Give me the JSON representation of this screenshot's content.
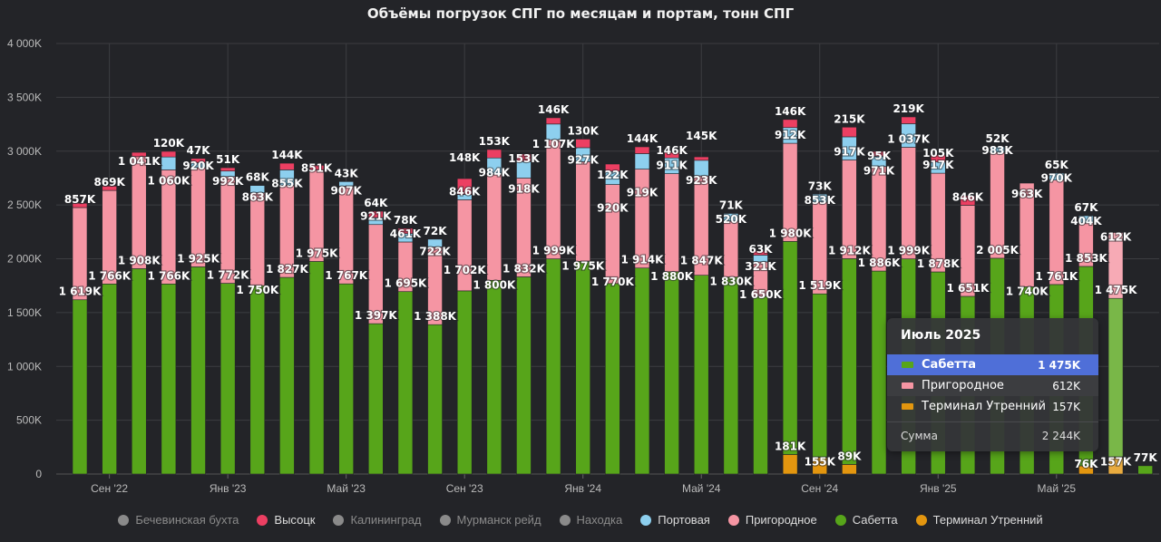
{
  "chart_data": {
    "type": "bar",
    "stacked": true,
    "title": "Объёмы погрузок СПГ по месяцам и портам, тонн СПГ",
    "unit": "K",
    "ylim": [
      0,
      4000
    ],
    "y_ticks": [
      "0",
      "500K",
      "1 000K",
      "1 500K",
      "2 000K",
      "2 500K",
      "3 000K",
      "3 500K",
      "4 000K"
    ],
    "x_ticks": [
      {
        "month": "2022-09",
        "label": "Сен '22"
      },
      {
        "month": "2023-01",
        "label": "Янв '23"
      },
      {
        "month": "2023-05",
        "label": "Май '23"
      },
      {
        "month": "2023-09",
        "label": "Сен '23"
      },
      {
        "month": "2024-01",
        "label": "Янв '24"
      },
      {
        "month": "2024-05",
        "label": "Май '24"
      },
      {
        "month": "2024-09",
        "label": "Сен '24"
      },
      {
        "month": "2025-01",
        "label": "Янв '25"
      },
      {
        "month": "2025-05",
        "label": "Май '25"
      }
    ],
    "grid": true,
    "legend_position": "bottom",
    "categories": [
      "2022-08",
      "2022-09",
      "2022-10",
      "2022-11",
      "2022-12",
      "2023-01",
      "2023-02",
      "2023-03",
      "2023-04",
      "2023-05",
      "2023-06",
      "2023-07",
      "2023-08",
      "2023-09",
      "2023-10",
      "2023-11",
      "2023-12",
      "2024-01",
      "2024-02",
      "2024-03",
      "2024-04",
      "2024-05",
      "2024-06",
      "2024-07",
      "2024-08",
      "2024-09",
      "2024-10",
      "2024-11",
      "2024-12",
      "2025-01",
      "2025-02",
      "2025-03",
      "2025-04",
      "2025-05",
      "2025-06",
      "2025-07",
      "2025-08"
    ],
    "series": [
      {
        "name": "Терминал Утренний",
        "color": "#e3960f",
        "values": [
          0,
          0,
          0,
          0,
          0,
          0,
          0,
          0,
          0,
          0,
          0,
          0,
          0,
          0,
          0,
          0,
          0,
          0,
          0,
          0,
          0,
          0,
          0,
          0,
          181,
          155,
          89,
          0,
          0,
          0,
          0,
          0,
          0,
          0,
          76,
          157,
          0
        ]
      },
      {
        "name": "Сабетта",
        "color": "#57a51a",
        "values": [
          1619,
          1766,
          1908,
          1766,
          1925,
          1772,
          1750,
          1827,
          1975,
          1767,
          1397,
          1695,
          1388,
          1702,
          1800,
          1832,
          1999,
          1975,
          1770,
          1914,
          1880,
          1847,
          1830,
          1650,
          1980,
          1519,
          1912,
          1886,
          1999,
          1878,
          1651,
          2005,
          1740,
          1761,
          1853,
          1475,
          77
        ]
      },
      {
        "name": "Пригородное",
        "color": "#f595a3",
        "values": [
          857,
          869,
          1041,
          1060,
          920,
          992,
          863,
          855,
          851,
          907,
          921,
          461,
          722,
          846,
          984,
          918,
          1107,
          927,
          920,
          919,
          911,
          923,
          520,
          321,
          912,
          853,
          917,
          971,
          1037,
          917,
          846,
          983,
          963,
          970,
          404,
          612,
          0
        ]
      },
      {
        "name": "Портовая",
        "color": "#8dcfee",
        "values": [
          0,
          0,
          0,
          120,
          47,
          51,
          68,
          144,
          0,
          43,
          64,
          78,
          72,
          49,
          153,
          153,
          146,
          130,
          122,
          144,
          146,
          145,
          71,
          63,
          146,
          73,
          215,
          95,
          219,
          105,
          0,
          52,
          0,
          65,
          67,
          0,
          0
        ]
      },
      {
        "name": "Высоцк",
        "color": "#ec3f62",
        "values": [
          40,
          40,
          40,
          52,
          40,
          31,
          0,
          62,
          42,
          0,
          60,
          50,
          0,
          148,
          78,
          70,
          58,
          80,
          68,
          63,
          52,
          32,
          0,
          38,
          75,
          0,
          90,
          45,
          63,
          64,
          88,
          0,
          0,
          0,
          0,
          0,
          0
        ]
      }
    ],
    "legend": [
      {
        "name": "Бечевинская бухта",
        "color": "#8a8a8a",
        "visible": false
      },
      {
        "name": "Высоцк",
        "color": "#ec3f62",
        "visible": true
      },
      {
        "name": "Калининград",
        "color": "#8a8a8a",
        "visible": false
      },
      {
        "name": "Мурманск рейд",
        "color": "#8a8a8a",
        "visible": false
      },
      {
        "name": "Находка",
        "color": "#8a8a8a",
        "visible": false
      },
      {
        "name": "Портовая",
        "color": "#8dcfee",
        "visible": true
      },
      {
        "name": "Пригородное",
        "color": "#f595a3",
        "visible": true
      },
      {
        "name": "Сабетта",
        "color": "#57a51a",
        "visible": true
      },
      {
        "name": "Терминал Утренний",
        "color": "#e3960f",
        "visible": true
      }
    ],
    "hovered_index": 35
  },
  "tooltip": {
    "title": "Июль 2025",
    "rows": [
      {
        "name": "Сабетта",
        "value": "1 475K",
        "color": "#57a51a",
        "highlighted": true
      },
      {
        "name": "Пригородное",
        "value": "612K",
        "color": "#f595a3"
      },
      {
        "name": "Терминал Утренний",
        "value": "157K",
        "color": "#e3960f"
      }
    ],
    "sum_label": "Сумма",
    "sum_value": "2 244K"
  }
}
